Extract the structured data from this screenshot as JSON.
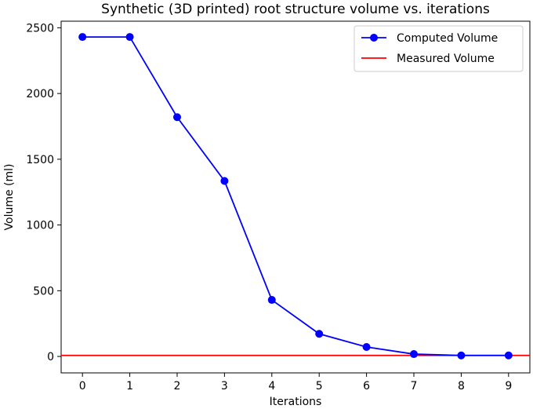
{
  "chart_data": {
    "type": "line",
    "title": "Synthetic (3D printed) root structure volume vs. iterations",
    "xlabel": "Iterations",
    "ylabel": "Volume (ml)",
    "xlim": [
      -0.45,
      9.45
    ],
    "ylim": [
      -125,
      2550
    ],
    "x_ticks": [
      0,
      1,
      2,
      3,
      4,
      5,
      6,
      7,
      8,
      9
    ],
    "y_ticks": [
      0,
      500,
      1000,
      1500,
      2000,
      2500
    ],
    "x_tick_labels": [
      "0",
      "1",
      "2",
      "3",
      "4",
      "5",
      "6",
      "7",
      "8",
      "9"
    ],
    "y_tick_labels": [
      "0",
      "500",
      "1000",
      "1500",
      "2000",
      "2500"
    ],
    "grid": false,
    "legend_position": "upper right",
    "series": [
      {
        "name": "Computed Volume",
        "kind": "line-markers",
        "color": "#0000ff",
        "x": [
          0,
          1,
          2,
          3,
          4,
          5,
          6,
          7,
          8,
          9
        ],
        "values": [
          2430,
          2430,
          1820,
          1335,
          430,
          172,
          72,
          18,
          8,
          8
        ]
      },
      {
        "name": "Measured Volume",
        "kind": "hline",
        "color": "#ff0000",
        "value": 8
      }
    ]
  }
}
